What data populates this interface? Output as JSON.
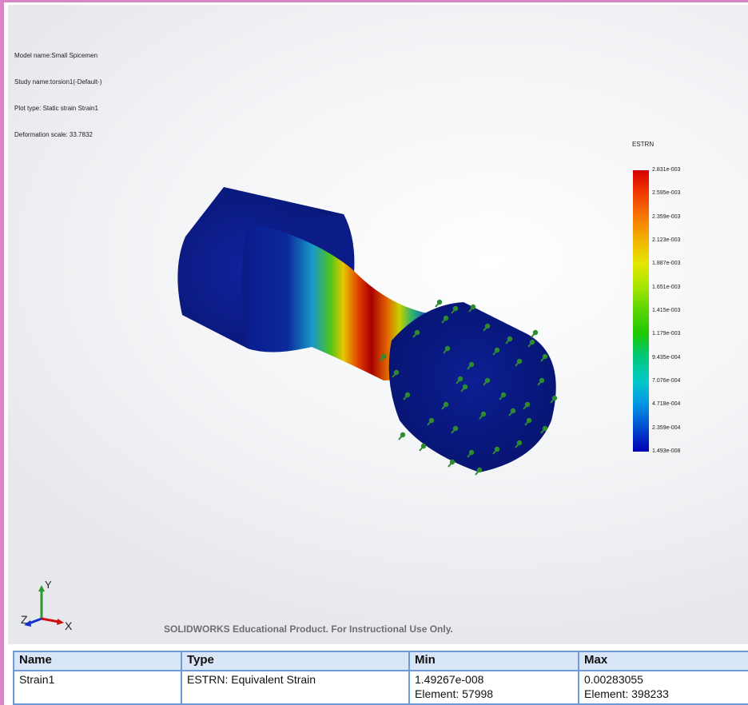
{
  "model_info": {
    "model_name": "Model name:Small Spicemen",
    "study_name": "Study name:torsion1(-Default-)",
    "plot_type": "Plot type: Static strain Strain1",
    "deformation_scale": "Deformation scale: 33.7832"
  },
  "legend": {
    "title": "ESTRN",
    "labels": [
      "2.831e-003",
      "2.595e-003",
      "2.359e-003",
      "2.123e-003",
      "1.887e-003",
      "1.651e-003",
      "1.415e-003",
      "1.179e-003",
      "9.435e-004",
      "7.076e-004",
      "4.718e-004",
      "2.359e-004",
      "1.493e-008"
    ]
  },
  "triad": {
    "y": "Y",
    "x": "X",
    "z": "Z"
  },
  "watermark": "SOLIDWORKS Educational Product. For Instructional Use Only.",
  "table": {
    "headers": [
      "Name",
      "Type",
      "Min",
      "Max"
    ],
    "row": {
      "name": "Strain1",
      "type": "ESTRN: Equivalent Strain",
      "min_value": "1.49267e-008",
      "min_element": "Element: 57998",
      "max_value": "0.00283055",
      "max_element": "Element: 398233"
    }
  },
  "colors": {
    "frame": "#d987c4",
    "table_border": "#6f9ad8",
    "table_header": "#d8e6f7",
    "fixture_green": "#2e8b2e",
    "low_strain_blue": "#0a1a8c",
    "high_strain_red": "#c40000"
  }
}
